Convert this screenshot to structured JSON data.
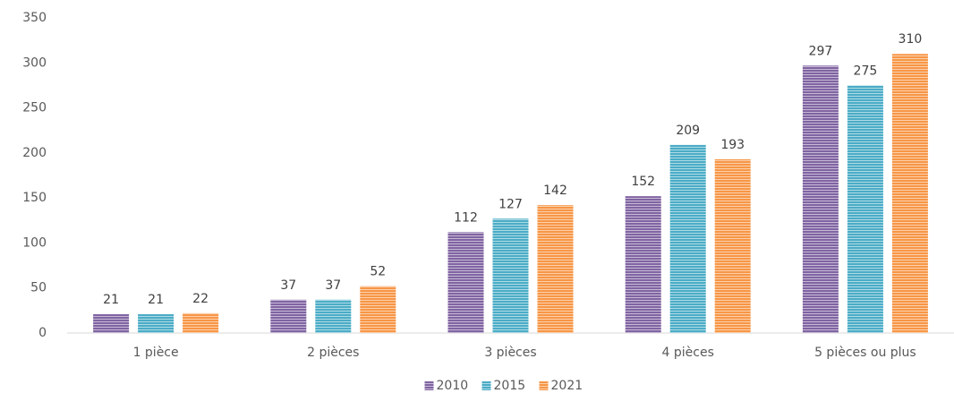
{
  "chart_data": {
    "type": "bar",
    "categories": [
      "1 pièce",
      "2 pièces",
      "3 pièces",
      "4 pièces",
      "5 pièces ou plus"
    ],
    "series": [
      {
        "name": "2010",
        "color": "#8064a2",
        "values": [
          21,
          37,
          112,
          152,
          297
        ]
      },
      {
        "name": "2015",
        "color": "#4bacc6",
        "values": [
          21,
          37,
          127,
          209,
          275
        ]
      },
      {
        "name": "2021",
        "color": "#f79646",
        "values": [
          22,
          52,
          142,
          193,
          310
        ]
      }
    ],
    "ylim": [
      0,
      350
    ],
    "yticks": [
      0,
      50,
      100,
      150,
      200,
      250,
      300,
      350
    ],
    "grid": false,
    "legend": "bottom"
  }
}
